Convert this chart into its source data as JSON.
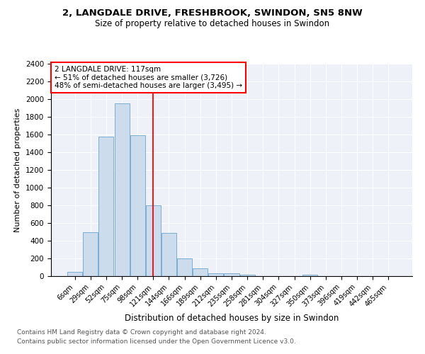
{
  "title1": "2, LANGDALE DRIVE, FRESHBROOK, SWINDON, SN5 8NW",
  "title2": "Size of property relative to detached houses in Swindon",
  "xlabel": "Distribution of detached houses by size in Swindon",
  "ylabel": "Number of detached properties",
  "categories": [
    "6sqm",
    "29sqm",
    "52sqm",
    "75sqm",
    "98sqm",
    "121sqm",
    "144sqm",
    "166sqm",
    "189sqm",
    "212sqm",
    "235sqm",
    "258sqm",
    "281sqm",
    "304sqm",
    "327sqm",
    "350sqm",
    "373sqm",
    "396sqm",
    "419sqm",
    "442sqm",
    "465sqm"
  ],
  "values": [
    50,
    500,
    1580,
    1950,
    1590,
    800,
    490,
    200,
    90,
    35,
    30,
    20,
    0,
    0,
    0,
    20,
    0,
    0,
    0,
    0,
    0
  ],
  "bar_color": "#cddcec",
  "bar_edge_color": "#7aadd4",
  "red_line_x": 5.0,
  "annotation_text": "2 LANGDALE DRIVE: 117sqm\n← 51% of detached houses are smaller (3,726)\n48% of semi-detached houses are larger (3,495) →",
  "annotation_box_color": "white",
  "annotation_box_edge": "red",
  "footer1": "Contains HM Land Registry data © Crown copyright and database right 2024.",
  "footer2": "Contains public sector information licensed under the Open Government Licence v3.0.",
  "bg_color": "#eef2f8",
  "ylim": [
    0,
    2400
  ],
  "yticks": [
    0,
    200,
    400,
    600,
    800,
    1000,
    1200,
    1400,
    1600,
    1800,
    2000,
    2200,
    2400
  ]
}
